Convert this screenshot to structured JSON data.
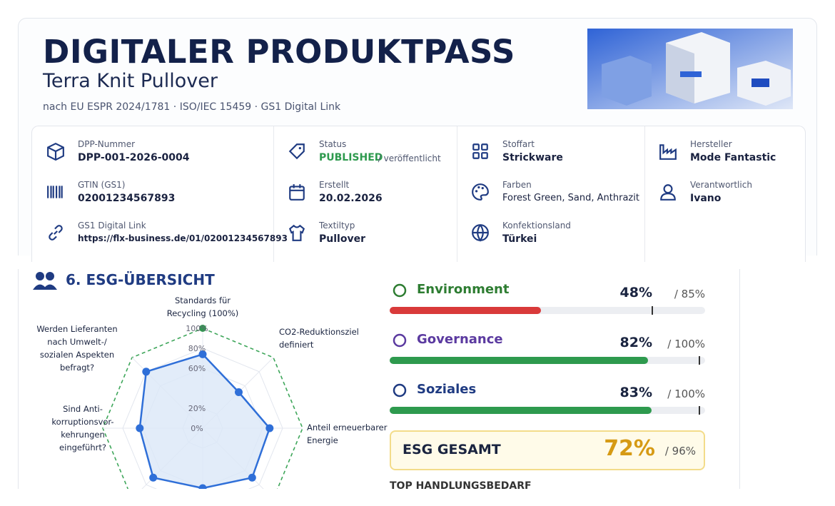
{
  "header": {
    "title": "DIGITALER PRODUKTPASS",
    "subtitle": "Terra Knit Pullover",
    "norms": "nach EU ESPR 2024/1781 · ISO/IEC 15459 · GS1 Digital Link"
  },
  "info": {
    "columns": [
      [
        {
          "label": "DPP-Nummer",
          "value": "DPP-001-2026-0004",
          "icon": "box"
        },
        {
          "label": "GTIN (GS1)",
          "value": "02001234567893",
          "icon": "barcode"
        },
        {
          "label": "GS1 Digital Link",
          "value": "https://flx-business.de/01/02001234567893",
          "icon": "link"
        }
      ],
      [
        {
          "label": "Status",
          "value": "PUBLISHED",
          "note": "/ veröffentlicht",
          "icon": "tag"
        },
        {
          "label": "Erstellt",
          "value": "20.02.2026",
          "icon": "calendar"
        },
        {
          "label": "Textiltyp",
          "value": "Pullover",
          "icon": "shirt"
        }
      ],
      [
        {
          "label": "Stoffart",
          "value": "Strickware",
          "icon": "grid"
        },
        {
          "label": "Farben",
          "value": "Forest Green, Sand, Anthrazit",
          "icon": "palette"
        },
        {
          "label": "Konfektionsland",
          "value": "Türkei",
          "icon": "globe"
        }
      ],
      [
        {
          "label": "Hersteller",
          "value": "Mode Fantastic",
          "icon": "factory"
        },
        {
          "label": "Verantwortlich",
          "value": "Ivano",
          "icon": "user"
        }
      ]
    ]
  },
  "esg": {
    "title": "6. ESG-ÜBERSICHT",
    "radar": {
      "axes": [
        [
          "Standards für",
          "Recycling (100%)"
        ],
        [
          "CO2-Reduktionsziel",
          "definiert"
        ],
        [
          "Anteil erneuerbarer",
          "Energie"
        ],
        null,
        null,
        null,
        [
          "Sind Anti-",
          "korruptionsvor-",
          "kehrungen",
          "eingeführt?"
        ],
        [
          "Werden Lieferanten",
          "nach Umwelt-/",
          "sozialen Aspekten",
          "befragt?"
        ]
      ],
      "values": [
        74,
        51,
        67,
        70,
        60,
        70,
        63,
        80
      ],
      "rlim": [
        0,
        100
      ],
      "ticks": [
        {
          "value": 100,
          "label": "100%"
        },
        {
          "value": 80,
          "label": "80%"
        },
        {
          "value": 60,
          "label": "60%"
        },
        {
          "value": 20,
          "label": "20%"
        },
        {
          "value": 0,
          "label": "0%"
        }
      ]
    },
    "bars": [
      {
        "name": "Environment",
        "value": 48,
        "value_label": "48%",
        "target": 85,
        "target_label": "/ 85%",
        "color": "#d93a3a",
        "name_color": "#2e7d32"
      },
      {
        "name": "Governance",
        "value": 82,
        "value_label": "82%",
        "target": 100,
        "target_label": "/ 100%",
        "color": "#2e9a4e",
        "name_color": "#5b3aa0"
      },
      {
        "name": "Soziales",
        "value": 83,
        "value_label": "83%",
        "target": 100,
        "target_label": "/ 100%",
        "color": "#2e9a4e",
        "name_color": "#1f3b82"
      }
    ],
    "barlim": [
      0,
      100
    ],
    "total": {
      "label": "ESG GESAMT",
      "value": 72,
      "value_label": "72%",
      "target": 96,
      "target_label": "/ 96%"
    },
    "footer": "TOP HANDLUNGSBEDARF"
  }
}
